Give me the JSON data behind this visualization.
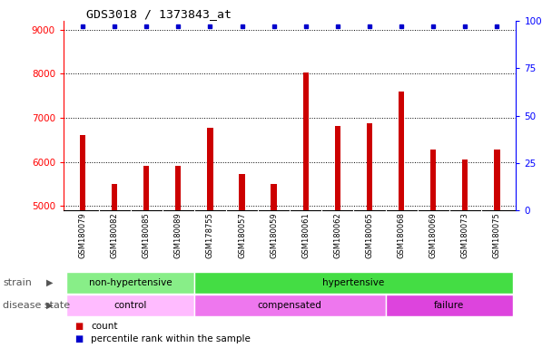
{
  "title": "GDS3018 / 1373843_at",
  "samples": [
    "GSM180079",
    "GSM180082",
    "GSM180085",
    "GSM180089",
    "GSM178755",
    "GSM180057",
    "GSM180059",
    "GSM180061",
    "GSM180062",
    "GSM180065",
    "GSM180068",
    "GSM180069",
    "GSM180073",
    "GSM180075"
  ],
  "counts": [
    6620,
    5510,
    5920,
    5920,
    6780,
    5730,
    5510,
    8020,
    6820,
    6880,
    7600,
    6280,
    6060,
    6280
  ],
  "percentile_ranks": [
    97,
    97,
    97,
    97,
    97,
    97,
    97,
    97,
    97,
    97,
    97,
    97,
    97,
    97
  ],
  "ylim_left": [
    4900,
    9200
  ],
  "ylim_right": [
    0,
    100
  ],
  "yticks_left": [
    5000,
    6000,
    7000,
    8000,
    9000
  ],
  "yticks_right": [
    0,
    25,
    50,
    75,
    100
  ],
  "bar_color": "#cc0000",
  "dot_color": "#0000cc",
  "strain_groups": [
    {
      "label": "non-hypertensive",
      "start": 0,
      "end": 4,
      "color": "#88ee88"
    },
    {
      "label": "hypertensive",
      "start": 4,
      "end": 14,
      "color": "#44dd44"
    }
  ],
  "disease_groups": [
    {
      "label": "control",
      "start": 0,
      "end": 4,
      "color": "#ffbbff"
    },
    {
      "label": "compensated",
      "start": 4,
      "end": 10,
      "color": "#ee77ee"
    },
    {
      "label": "failure",
      "start": 10,
      "end": 14,
      "color": "#dd44dd"
    }
  ],
  "strain_label": "strain",
  "disease_label": "disease state",
  "legend_count_label": "count",
  "legend_percentile_label": "percentile rank within the sample",
  "tick_bg_color": "#cccccc",
  "fig_bg_color": "#ffffff",
  "bar_width": 0.18
}
